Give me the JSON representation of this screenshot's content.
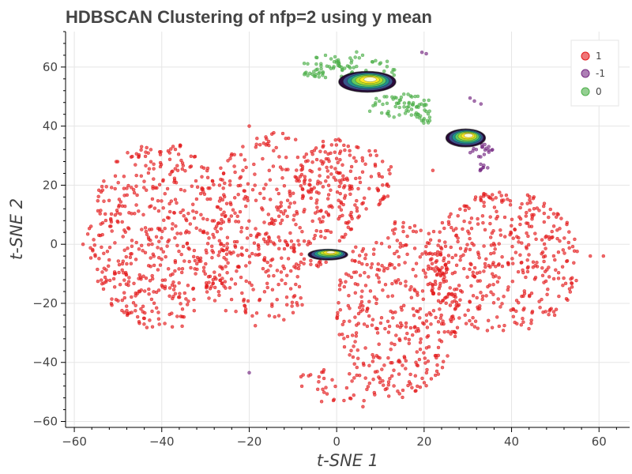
{
  "chart_data": {
    "type": "scatter",
    "title": "HDBSCAN Clustering of nfp=2 using y mean",
    "xlabel": "t-SNE 1",
    "ylabel": "t-SNE 2",
    "xlim": [
      -62,
      67
    ],
    "ylim": [
      -62,
      72
    ],
    "xticks": [
      -60,
      -40,
      -20,
      0,
      20,
      40,
      60
    ],
    "yticks": [
      -60,
      -40,
      -20,
      0,
      20,
      40,
      60
    ],
    "grid": true,
    "legend_position": "top-right",
    "series": [
      {
        "name": "1",
        "color": "#e41a1c",
        "regions": [
          {
            "cx": -40,
            "cy": 3,
            "rx": 17,
            "ry": 32,
            "n": 520
          },
          {
            "cx": -12,
            "cy": 14,
            "rx": 18,
            "ry": 24,
            "n": 300
          },
          {
            "cx": 2,
            "cy": 22,
            "rx": 11,
            "ry": 14,
            "n": 120
          },
          {
            "cx": 14,
            "cy": -22,
            "rx": 14,
            "ry": 30,
            "n": 380
          },
          {
            "cx": 38,
            "cy": -6,
            "rx": 18,
            "ry": 24,
            "n": 420
          },
          {
            "cx": -18,
            "cy": -12,
            "rx": 12,
            "ry": 16,
            "n": 120
          },
          {
            "cx": 0,
            "cy": -48,
            "rx": 12,
            "ry": 6,
            "n": 40
          }
        ],
        "points": [
          {
            "x": -58,
            "y": 0
          },
          {
            "x": 61,
            "y": -4
          },
          {
            "x": 58,
            "y": -4
          },
          {
            "x": 22,
            "y": 25
          },
          {
            "x": 6,
            "y": -55
          },
          {
            "x": -20,
            "y": 40
          }
        ]
      },
      {
        "name": "-1",
        "color": "#762a83",
        "regions": [
          {
            "cx": 33,
            "cy": 31,
            "rx": 3,
            "ry": 3,
            "n": 18
          },
          {
            "cx": 34,
            "cy": 26,
            "rx": 1.5,
            "ry": 2,
            "n": 8
          }
        ],
        "points": [
          {
            "x": 19.5,
            "y": 65
          },
          {
            "x": 20.5,
            "y": 64.5
          },
          {
            "x": 30.5,
            "y": 49.5
          },
          {
            "x": 31.5,
            "y": 48.5
          },
          {
            "x": 33,
            "y": 47.5
          },
          {
            "x": -20,
            "y": -43.5
          }
        ]
      },
      {
        "name": "0",
        "color": "#4daf4a",
        "regions": [
          {
            "cx": -2,
            "cy": 60,
            "rx": 7,
            "ry": 4,
            "n": 60
          },
          {
            "cx": 10,
            "cy": 59,
            "rx": 4,
            "ry": 4,
            "n": 22
          },
          {
            "cx": 14,
            "cy": 47,
            "rx": 8,
            "ry": 4,
            "n": 60
          },
          {
            "cx": 20,
            "cy": 44,
            "rx": 2,
            "ry": 4,
            "n": 18
          },
          {
            "cx": 4,
            "cy": 64,
            "rx": 2,
            "ry": 2,
            "n": 6
          }
        ],
        "points": []
      }
    ],
    "density_overlays": [
      {
        "cx": 7,
        "cy": 55,
        "rx": 6.5,
        "ry": 3.5
      },
      {
        "cx": 29.5,
        "cy": 36,
        "rx": 4.5,
        "ry": 3
      },
      {
        "cx": -2,
        "cy": -3.5,
        "rx": 4.5,
        "ry": 1.8
      }
    ]
  },
  "legend": {
    "items": [
      {
        "label": "1",
        "color": "#e41a1c"
      },
      {
        "label": "-1",
        "color": "#762a83"
      },
      {
        "label": "0",
        "color": "#4daf4a"
      }
    ]
  }
}
